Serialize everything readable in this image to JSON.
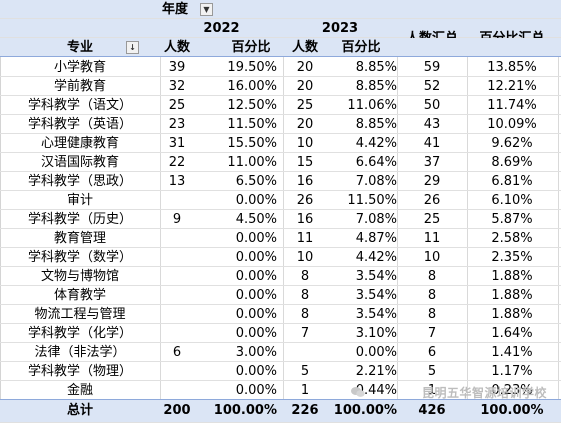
{
  "pivot": {
    "filter_field": "年度",
    "row_field": "专业",
    "year_2022": "2022",
    "year_2023": "2023",
    "col_count": "人数",
    "col_pct": "百分比",
    "col_total_count": "人数汇总",
    "col_total_pct": "百分比汇总",
    "rows": [
      {
        "major": "小学教育",
        "c22": "39",
        "p22": "19.50%",
        "c23": "20",
        "p23": "8.85%",
        "ct": "59",
        "pt": "13.85%"
      },
      {
        "major": "学前教育",
        "c22": "32",
        "p22": "16.00%",
        "c23": "20",
        "p23": "8.85%",
        "ct": "52",
        "pt": "12.21%"
      },
      {
        "major": "学科教学（语文）",
        "c22": "25",
        "p22": "12.50%",
        "c23": "25",
        "p23": "11.06%",
        "ct": "50",
        "pt": "11.74%"
      },
      {
        "major": "学科教学（英语）",
        "c22": "23",
        "p22": "11.50%",
        "c23": "20",
        "p23": "8.85%",
        "ct": "43",
        "pt": "10.09%"
      },
      {
        "major": "心理健康教育",
        "c22": "31",
        "p22": "15.50%",
        "c23": "10",
        "p23": "4.42%",
        "ct": "41",
        "pt": "9.62%"
      },
      {
        "major": "汉语国际教育",
        "c22": "22",
        "p22": "11.00%",
        "c23": "15",
        "p23": "6.64%",
        "ct": "37",
        "pt": "8.69%"
      },
      {
        "major": "学科教学（思政）",
        "c22": "13",
        "p22": "6.50%",
        "c23": "16",
        "p23": "7.08%",
        "ct": "29",
        "pt": "6.81%"
      },
      {
        "major": "审计",
        "c22": "",
        "p22": "0.00%",
        "c23": "26",
        "p23": "11.50%",
        "ct": "26",
        "pt": "6.10%"
      },
      {
        "major": "学科教学（历史）",
        "c22": "9",
        "p22": "4.50%",
        "c23": "16",
        "p23": "7.08%",
        "ct": "25",
        "pt": "5.87%"
      },
      {
        "major": "教育管理",
        "c22": "",
        "p22": "0.00%",
        "c23": "11",
        "p23": "4.87%",
        "ct": "11",
        "pt": "2.58%"
      },
      {
        "major": "学科教学（数学）",
        "c22": "",
        "p22": "0.00%",
        "c23": "10",
        "p23": "4.42%",
        "ct": "10",
        "pt": "2.35%"
      },
      {
        "major": "文物与博物馆",
        "c22": "",
        "p22": "0.00%",
        "c23": "8",
        "p23": "3.54%",
        "ct": "8",
        "pt": "1.88%"
      },
      {
        "major": "体育教学",
        "c22": "",
        "p22": "0.00%",
        "c23": "8",
        "p23": "3.54%",
        "ct": "8",
        "pt": "1.88%"
      },
      {
        "major": "物流工程与管理",
        "c22": "",
        "p22": "0.00%",
        "c23": "8",
        "p23": "3.54%",
        "ct": "8",
        "pt": "1.88%"
      },
      {
        "major": "学科教学（化学）",
        "c22": "",
        "p22": "0.00%",
        "c23": "7",
        "p23": "3.10%",
        "ct": "7",
        "pt": "1.64%"
      },
      {
        "major": "法律（非法学）",
        "c22": "6",
        "p22": "3.00%",
        "c23": "",
        "p23": "0.00%",
        "ct": "6",
        "pt": "1.41%"
      },
      {
        "major": "学科教学（物理）",
        "c22": "",
        "p22": "0.00%",
        "c23": "5",
        "p23": "2.21%",
        "ct": "5",
        "pt": "1.17%"
      },
      {
        "major": "金融",
        "c22": "",
        "p22": "0.00%",
        "c23": "1",
        "p23": "0.44%",
        "ct": "1",
        "pt": "0.23%"
      }
    ],
    "total": {
      "label": "总计",
      "c22": "200",
      "p22": "100.00%",
      "c23": "226",
      "p23": "100.00%",
      "ct": "426",
      "pt": "100.00%"
    }
  },
  "watermark": "昆明五华智源培训学校",
  "icons": {
    "filter_dropdown": "chevron-down-icon",
    "sort_filter": "sort-filter-icon",
    "watermark_logo": "wechat-icon"
  }
}
